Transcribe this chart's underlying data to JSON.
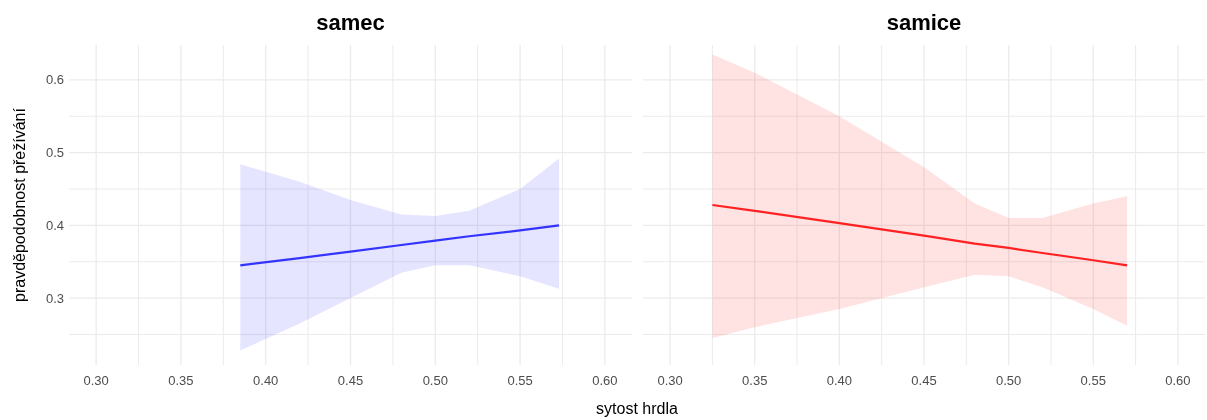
{
  "chart_data": [
    {
      "type": "line",
      "title": "samec",
      "xlabel": "sytost hrdla",
      "ylabel": "pravděpodobnost přežívání",
      "xlim": [
        0.284,
        0.616
      ],
      "ylim": [
        0.208,
        0.648
      ],
      "grid": true,
      "xticks": [
        {
          "value": 0.3,
          "label": "0.30"
        },
        {
          "value": 0.325,
          "label": null
        },
        0.35,
        {
          "value": 0.375,
          "label": null
        },
        {
          "value": 0.4,
          "label": "0.40"
        },
        {
          "value": 0.425,
          "label": null
        },
        0.45,
        {
          "value": 0.475,
          "label": null
        },
        {
          "value": 0.5,
          "label": "0.50"
        },
        {
          "value": 0.525,
          "label": null
        },
        0.55,
        {
          "value": 0.575,
          "label": null
        },
        {
          "value": 0.6,
          "label": "0.60"
        }
      ],
      "yticks": [
        {
          "value": 0.25,
          "label": null
        },
        0.3,
        {
          "value": 0.35,
          "label": null
        },
        0.4,
        {
          "value": 0.45,
          "label": null
        },
        0.5,
        {
          "value": 0.55,
          "label": null
        },
        0.6
      ],
      "series": [
        {
          "color": "#3333ff",
          "x": [
            0.385,
            0.42,
            0.45,
            0.48,
            0.5,
            0.52,
            0.55,
            0.573
          ],
          "values": [
            0.345,
            0.355,
            0.364,
            0.373,
            0.379,
            0.385,
            0.393,
            0.4
          ],
          "lower": [
            0.228,
            0.265,
            0.3,
            0.335,
            0.345,
            0.345,
            0.33,
            0.313
          ],
          "upper": [
            0.484,
            0.46,
            0.435,
            0.415,
            0.413,
            0.42,
            0.45,
            0.492
          ]
        }
      ]
    },
    {
      "type": "line",
      "title": "samice",
      "xlim": [
        0.284,
        0.616
      ],
      "ylim": [
        0.208,
        0.648
      ],
      "grid": true,
      "tick_labels": "x",
      "xticks": [
        {
          "value": 0.3,
          "label": "0.30"
        },
        {
          "value": 0.325,
          "label": null
        },
        0.35,
        {
          "value": 0.375,
          "label": null
        },
        {
          "value": 0.4,
          "label": "0.40"
        },
        {
          "value": 0.425,
          "label": null
        },
        0.45,
        {
          "value": 0.475,
          "label": null
        },
        {
          "value": 0.5,
          "label": "0.50"
        },
        {
          "value": 0.525,
          "label": null
        },
        0.55,
        {
          "value": 0.575,
          "label": null
        },
        {
          "value": 0.6,
          "label": "0.60"
        }
      ],
      "yticks": [
        {
          "value": 0.25,
          "label": null
        },
        0.3,
        {
          "value": 0.35,
          "label": null
        },
        0.4,
        {
          "value": 0.45,
          "label": null
        },
        0.5,
        {
          "value": 0.55,
          "label": null
        },
        0.6
      ],
      "series": [
        {
          "color": "#ff2222",
          "x": [
            0.325,
            0.35,
            0.4,
            0.45,
            0.48,
            0.5,
            0.52,
            0.55,
            0.57
          ],
          "values": [
            0.428,
            0.42,
            0.403,
            0.386,
            0.375,
            0.369,
            0.362,
            0.352,
            0.345
          ],
          "lower": [
            0.245,
            0.26,
            0.285,
            0.315,
            0.332,
            0.33,
            0.315,
            0.285,
            0.262
          ],
          "upper": [
            0.635,
            0.61,
            0.55,
            0.48,
            0.43,
            0.41,
            0.41,
            0.43,
            0.44
          ]
        }
      ]
    }
  ]
}
